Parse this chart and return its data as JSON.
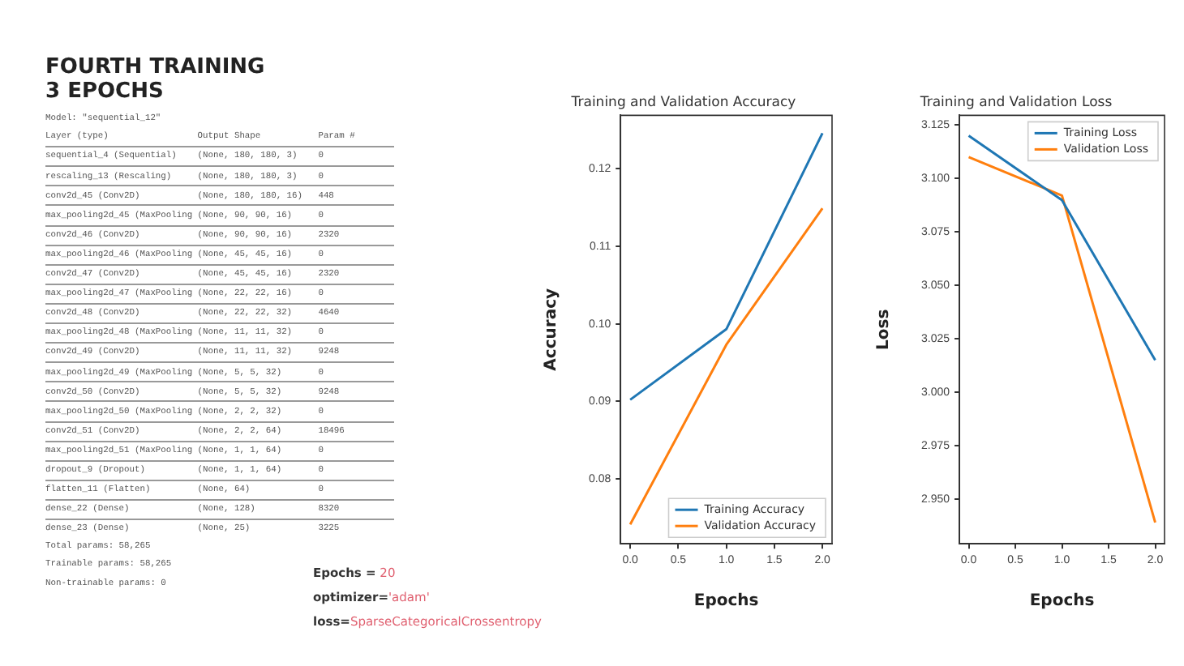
{
  "chart_data": [
    {
      "type": "other",
      "title": "FOURTH TRAINING",
      "subtitle": "3 EPOCHS",
      "annotations": [
        "Model: \"sequential_12\"",
        "Layer (type)                 Output Shape           Param #",
        "sequential_4 (Sequential)    (None, 180, 180, 3)    0",
        "rescaling_13 (Rescaling)     (None, 180, 180, 3)    0",
        "conv2d_45 (Conv2D)           (None, 180, 180, 16)   448",
        "max_pooling2d_45 (MaxPooling (None, 90, 90, 16)     0",
        "conv2d_46 (Conv2D)           (None, 90, 90, 16)     2320",
        "max_pooling2d_46 (MaxPooling (None, 45, 45, 16)     0",
        "conv2d_47 (Conv2D)           (None, 45, 45, 16)     2320",
        "max_pooling2d_47 (MaxPooling (None, 22, 22, 16)     0",
        "conv2d_48 (Conv2D)           (None, 22, 22, 32)     4640",
        "max_pooling2d_48 (MaxPooling (None, 11, 11, 32)     0",
        "conv2d_49 (Conv2D)           (None, 11, 11, 32)     9248",
        "max_pooling2d_49 (MaxPooling (None, 5, 5, 32)       0",
        "conv2d_50 (Conv2D)           (None, 5, 5, 32)       9248",
        "max_pooling2d_50 (MaxPooling (None, 2, 2, 32)       0",
        "conv2d_51 (Conv2D)           (None, 2, 2, 64)       18496",
        "max_pooling2d_51 (MaxPooling (None, 1, 1, 64)       0",
        "dropout_9 (Dropout)          (None, 1, 1, 64)       0",
        "flatten_11 (Flatten)         (None, 64)             0",
        "dense_22 (Dense)             (None, 128)            8320",
        "dense_23 (Dense)             (None, 25)             3225",
        "Total params: 58,265",
        "Trainable params: 58,265",
        "Non-trainable params: 0"
      ]
    },
    {
      "type": "line",
      "title": "Training and Validation Accuracy",
      "xlabel": "Epochs",
      "ylabel": "Accuracy",
      "x": [
        0,
        1,
        2
      ],
      "series": [
        {
          "name": "Training Accuracy",
          "color": "#1f77b4",
          "values": [
            0.0902,
            0.0993,
            0.1246
          ]
        },
        {
          "name": "Validation Accuracy",
          "color": "#ff7f0e",
          "values": [
            0.0741,
            0.0973,
            0.1149
          ]
        }
      ],
      "xlim": [
        -0.1,
        2.1
      ],
      "xticks": [
        {
          "value": 0,
          "label": "0.0"
        },
        {
          "value": 0.5,
          "label": "0.5"
        },
        {
          "value": 1,
          "label": "1.0"
        },
        {
          "value": 1.5,
          "label": "1.5"
        },
        {
          "value": 2,
          "label": "2.0"
        }
      ],
      "ylim": [
        0.0716,
        0.1269
      ],
      "yticks": [
        0.08,
        0.09,
        {
          "value": 0.1,
          "label": "0.10"
        },
        0.11,
        0.12
      ],
      "grid": false,
      "legend": "bottom right",
      "marker": "none",
      "line_style": "solid"
    },
    {
      "type": "line",
      "title": "Training and Validation Loss",
      "xlabel": "Epochs",
      "ylabel": "Loss",
      "x": [
        0,
        1,
        2
      ],
      "series": [
        {
          "name": "Training Loss",
          "color": "#1f77b4",
          "values": [
            3.12,
            3.0898,
            3.015
          ]
        },
        {
          "name": "Validation Loss",
          "color": "#ff7f0e",
          "values": [
            3.11,
            3.092,
            2.939
          ]
        }
      ],
      "xlim": [
        -0.1,
        2.1
      ],
      "xticks": [
        {
          "value": 0,
          "label": "0.0"
        },
        {
          "value": 0.5,
          "label": "0.5"
        },
        {
          "value": 1,
          "label": "1.0"
        },
        {
          "value": 1.5,
          "label": "1.5"
        },
        {
          "value": 2,
          "label": "2.0"
        }
      ],
      "ylim": [
        2.929,
        3.1295
      ],
      "yticks": [
        {
          "value": 2.95,
          "label": "2.950"
        },
        {
          "value": 2.975,
          "label": "2.975"
        },
        {
          "value": 3,
          "label": "3.000"
        },
        {
          "value": 3.025,
          "label": "3.025"
        },
        {
          "value": 3.05,
          "label": "3.050"
        },
        {
          "value": 3.075,
          "label": "3.075"
        },
        {
          "value": 3.1,
          "label": "3.100"
        },
        {
          "value": 3.125,
          "label": "3.125"
        }
      ],
      "grid": false,
      "legend": "top right",
      "marker": "none",
      "line_style": "solid"
    },
    {
      "type": "other",
      "annotations": [
        "Epochs = 20",
        "optimizer='adam'",
        "loss=SparseCategoricalCrossentropy"
      ]
    }
  ]
}
